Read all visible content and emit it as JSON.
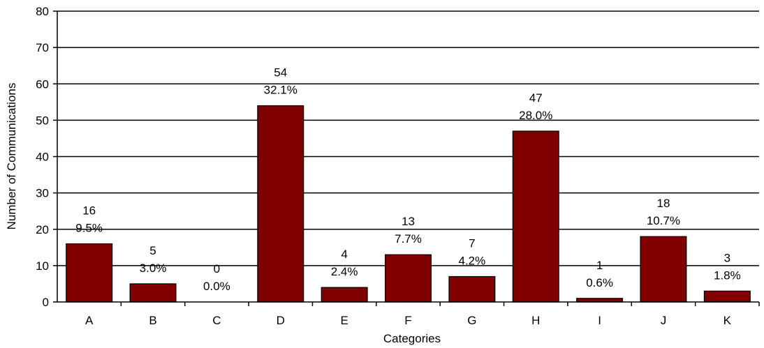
{
  "chart_data": {
    "type": "bar",
    "categories": [
      "A",
      "B",
      "C",
      "D",
      "E",
      "F",
      "G",
      "H",
      "I",
      "J",
      "K"
    ],
    "values": [
      16,
      5,
      0,
      54,
      4,
      13,
      7,
      47,
      1,
      18,
      3
    ],
    "percent_labels": [
      "9.5%",
      "3.0%",
      "0.0%",
      "32.1%",
      "2.4%",
      "7.7%",
      "4.2%",
      "28.0%",
      "0.6%",
      "10.7%",
      "1.8%"
    ],
    "xlabel": "Categories",
    "ylabel": "Number of Communications",
    "ylim": [
      0,
      80
    ],
    "yticks": [
      0,
      10,
      20,
      30,
      40,
      50,
      60,
      70,
      80
    ],
    "grid": "horizontal",
    "bar_color": "#800000",
    "legend": "none"
  }
}
